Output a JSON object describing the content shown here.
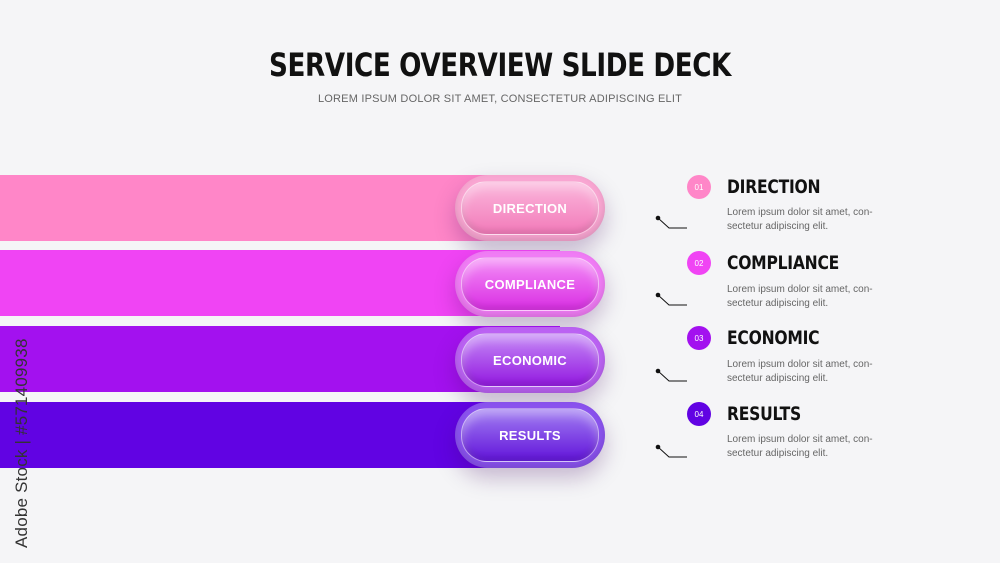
{
  "header": {
    "title": "SERVICE OVERVIEW SLIDE DECK",
    "subtitle": "LOREM IPSUM DOLOR SIT AMET, CONSECTETUR ADIPISCING ELIT"
  },
  "items": [
    {
      "number": "01",
      "pill_label": "DIRECTION",
      "title": "DIRECTION",
      "desc_line1": "Lorem ipsum dolor sit amet, con-",
      "desc_line2": "sectetur adipiscing elit.",
      "color": "#ff86c8"
    },
    {
      "number": "02",
      "pill_label": "COMPLIANCE",
      "title": "COMPLIANCE",
      "desc_line1": "Lorem ipsum dolor sit amet, con-",
      "desc_line2": "sectetur adipiscing elit.",
      "color": "#f044f4"
    },
    {
      "number": "03",
      "pill_label": "ECONOMIC",
      "title": "ECONOMIC",
      "desc_line1": "Lorem ipsum dolor sit amet, con-",
      "desc_line2": "sectetur adipiscing elit.",
      "color": "#a311ef"
    },
    {
      "number": "04",
      "pill_label": "RESULTS",
      "title": "RESULTS",
      "desc_line1": "Lorem ipsum dolor sit amet, con-",
      "desc_line2": "sectetur adipiscing elit.",
      "color": "#6103e3"
    }
  ],
  "watermark": {
    "side_text": "Adobe Stock | #571409938"
  }
}
